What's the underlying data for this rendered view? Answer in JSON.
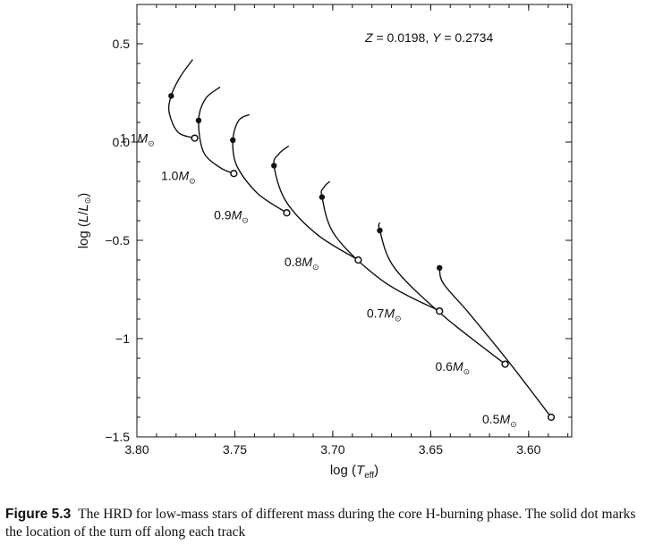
{
  "chart_data": {
    "type": "line",
    "xlabel": {
      "prefix": "log (",
      "var": "T",
      "sub": "eff",
      "suffix": ")"
    },
    "ylabel": {
      "prefix": "log (",
      "var": "L",
      "slash": "/",
      "var2": "L",
      "sub": "⊙",
      "suffix": ")"
    },
    "xlim": [
      3.8,
      3.578
    ],
    "ylim": [
      -1.5,
      0.7
    ],
    "x_ticks": [
      "3.80",
      "3.75",
      "3.70",
      "3.65",
      "3.60"
    ],
    "x_tick_values": [
      3.8,
      3.75,
      3.7,
      3.65,
      3.6
    ],
    "y_ticks": [
      "0.5",
      "0.0",
      "−0.5",
      "−1",
      "−1.5"
    ],
    "y_tick_values": [
      0.5,
      0.0,
      -0.5,
      -1.0,
      -1.5
    ],
    "annotation": {
      "z_var": "Z",
      "z_val": " = 0.0198, ",
      "y_var": "Y",
      "y_val": " = 0.2734"
    },
    "mass_symbol": "M",
    "mass_sub": "⊙",
    "tracks": [
      {
        "mass": "1.1",
        "points": [
          [
            3.7705,
            0.02
          ],
          [
            3.779,
            0.05
          ],
          [
            3.7835,
            0.15
          ],
          [
            3.7825,
            0.235
          ],
          [
            3.778,
            0.33
          ],
          [
            3.7715,
            0.42
          ]
        ],
        "zams": [
          3.7705,
          0.02
        ],
        "turnoff": [
          3.7825,
          0.235
        ]
      },
      {
        "mass": "1.0",
        "points": [
          [
            3.7505,
            -0.16
          ],
          [
            3.7575,
            -0.13
          ],
          [
            3.766,
            -0.05
          ],
          [
            3.7685,
            0.11
          ],
          [
            3.765,
            0.22
          ],
          [
            3.7575,
            0.28
          ]
        ],
        "zams": [
          3.7505,
          -0.16
        ],
        "turnoff": [
          3.7685,
          0.11
        ]
      },
      {
        "mass": "0.9",
        "points": [
          [
            3.7235,
            -0.36
          ],
          [
            3.7385,
            -0.26
          ],
          [
            3.749,
            -0.12
          ],
          [
            3.751,
            0.01
          ],
          [
            3.748,
            0.11
          ],
          [
            3.7425,
            0.14
          ]
        ],
        "zams": [
          3.7235,
          -0.36
        ],
        "turnoff": [
          3.751,
          0.01
        ]
      },
      {
        "mass": "0.8",
        "points": [
          [
            3.687,
            -0.6
          ],
          [
            3.708,
            -0.47
          ],
          [
            3.724,
            -0.3
          ],
          [
            3.73,
            -0.12
          ],
          [
            3.7275,
            -0.06
          ],
          [
            3.7225,
            -0.02
          ]
        ],
        "zams": [
          3.687,
          -0.6
        ],
        "turnoff": [
          3.73,
          -0.12
        ]
      },
      {
        "mass": "0.7",
        "points": [
          [
            3.6455,
            -0.86
          ],
          [
            3.674,
            -0.71
          ],
          [
            3.6985,
            -0.48
          ],
          [
            3.7055,
            -0.28
          ],
          [
            3.7045,
            -0.23
          ],
          [
            3.7015,
            -0.2
          ]
        ],
        "zams": [
          3.6455,
          -0.86
        ],
        "turnoff": [
          3.7055,
          -0.28
        ]
      },
      {
        "mass": "0.6",
        "points": [
          [
            3.612,
            -1.13
          ],
          [
            3.644,
            -0.88
          ],
          [
            3.6685,
            -0.64
          ],
          [
            3.676,
            -0.45
          ],
          [
            3.676,
            -0.41
          ]
        ],
        "zams": [
          3.612,
          -1.13
        ],
        "turnoff": [
          3.676,
          -0.45
        ]
      },
      {
        "mass": "0.5",
        "points": [
          [
            3.5885,
            -1.4
          ],
          [
            3.61,
            -1.12
          ],
          [
            3.6305,
            -0.87
          ],
          [
            3.6435,
            -0.72
          ],
          [
            3.6455,
            -0.64
          ]
        ],
        "zams": [
          3.5885,
          -1.4
        ],
        "turnoff": [
          3.6455,
          -0.64
        ]
      }
    ],
    "mass_label_positions": {
      "1.1": [
        3.791,
        0.02
      ],
      "1.0": [
        3.77,
        -0.17
      ],
      "0.9": [
        3.743,
        -0.37
      ],
      "0.8": [
        3.707,
        -0.61
      ],
      "0.7": [
        3.665,
        -0.87
      ],
      "0.6": [
        3.63,
        -1.14
      ],
      "0.5": [
        3.606,
        -1.41
      ]
    }
  },
  "caption": {
    "figure_number": "Figure 5.3",
    "text": "The HRD for low-mass stars of different mass during the core H-burning phase. The solid dot marks the location of the turn off along each track"
  }
}
